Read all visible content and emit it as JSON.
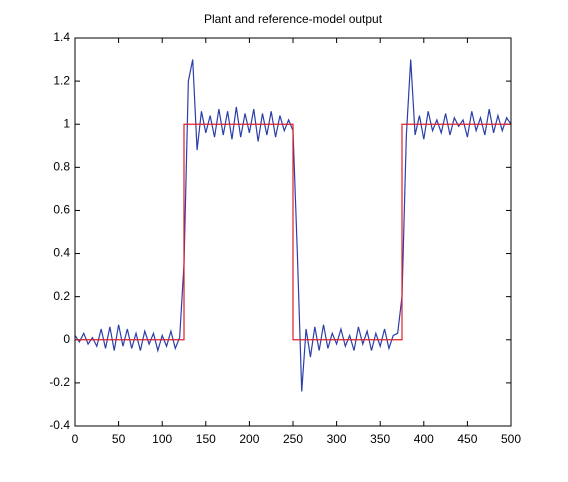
{
  "chart_data": {
    "type": "line",
    "title": "Plant and reference-model output",
    "xlim": [
      0,
      500
    ],
    "xticks": [
      0,
      50,
      100,
      150,
      200,
      250,
      300,
      350,
      400,
      450,
      500
    ],
    "ylim": [
      -0.4,
      1.4
    ],
    "yticks": [
      -0.4,
      -0.2,
      0,
      0.2,
      0.4,
      0.6,
      0.8,
      1,
      1.2,
      1.4
    ],
    "grid": false,
    "series": [
      {
        "color": "#2b3fa8",
        "x": [
          0,
          5,
          10,
          15,
          20,
          25,
          30,
          35,
          40,
          45,
          50,
          55,
          60,
          65,
          70,
          75,
          80,
          85,
          90,
          95,
          100,
          105,
          110,
          115,
          120,
          125,
          130,
          135,
          140,
          145,
          150,
          155,
          160,
          165,
          170,
          175,
          180,
          185,
          190,
          195,
          200,
          205,
          210,
          215,
          220,
          225,
          230,
          235,
          240,
          245,
          250,
          255,
          260,
          265,
          270,
          275,
          280,
          285,
          290,
          295,
          300,
          305,
          310,
          315,
          320,
          325,
          330,
          335,
          340,
          345,
          350,
          355,
          360,
          365,
          370,
          375,
          380,
          385,
          390,
          395,
          400,
          405,
          410,
          415,
          420,
          425,
          430,
          435,
          440,
          445,
          450,
          455,
          460,
          465,
          470,
          475,
          480,
          485,
          490,
          495,
          500
        ],
        "values": [
          0.02,
          -0.01,
          0.03,
          -0.02,
          0.01,
          -0.03,
          0.05,
          -0.04,
          0.06,
          -0.05,
          0.07,
          -0.03,
          0.05,
          -0.04,
          0.03,
          -0.05,
          0.04,
          -0.02,
          0.03,
          -0.05,
          0.02,
          -0.03,
          0.04,
          -0.04,
          0.01,
          0.35,
          1.2,
          1.3,
          0.88,
          1.06,
          0.96,
          1.04,
          0.94,
          1.07,
          0.95,
          1.06,
          0.93,
          1.08,
          0.94,
          1.05,
          0.96,
          1.07,
          0.92,
          1.05,
          0.95,
          1.06,
          0.94,
          1.04,
          0.97,
          1.02,
          0.97,
          0.4,
          -0.24,
          0.05,
          -0.08,
          0.06,
          -0.05,
          0.07,
          -0.04,
          0.03,
          -0.02,
          0.05,
          -0.03,
          0.02,
          -0.05,
          0.06,
          -0.02,
          0.04,
          -0.05,
          0.03,
          -0.03,
          0.05,
          -0.04,
          0.02,
          0.03,
          0.2,
          0.95,
          1.3,
          0.95,
          1.04,
          0.93,
          1.06,
          0.97,
          1.02,
          0.96,
          1.05,
          0.95,
          1.03,
          0.99,
          1.02,
          0.94,
          1.06,
          0.97,
          1.03,
          0.95,
          1.07,
          0.96,
          1.04,
          0.97,
          1.03,
          1.0
        ]
      },
      {
        "color": "#e0202a",
        "x": [
          0,
          125,
          125,
          250,
          250,
          375,
          375,
          500
        ],
        "values": [
          0,
          0,
          1,
          1,
          0,
          0,
          1,
          1
        ]
      }
    ]
  }
}
